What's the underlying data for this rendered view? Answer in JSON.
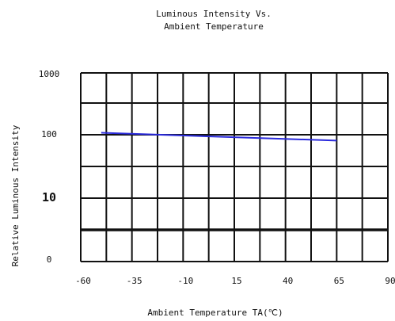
{
  "chart_data": {
    "type": "line",
    "title_lines": [
      "Luminous Intensity Vs.",
      "Ambient Temperature"
    ],
    "xlabel": "Ambient Temperature TA(℃)",
    "ylabel": "Relative Luminous Intensity",
    "x_ticks": [
      "-60",
      "-35",
      "-10",
      "15",
      "40",
      "65",
      "90"
    ],
    "y_ticks": [
      "1000",
      "100",
      "10",
      "0"
    ],
    "grid": true,
    "series": [
      {
        "color": "#2b2bdc",
        "x": [
          -50,
          65
        ],
        "y": [
          108,
          80
        ]
      }
    ]
  }
}
